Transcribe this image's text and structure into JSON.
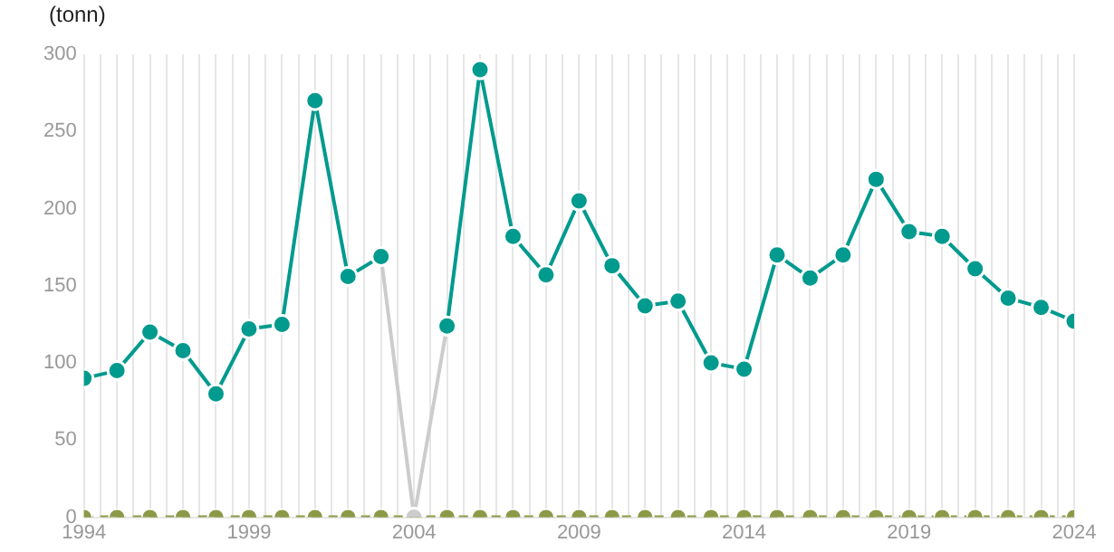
{
  "chart_data": {
    "type": "line",
    "ylabel": "(tonn)",
    "x": [
      1994,
      1995,
      1996,
      1997,
      1998,
      1999,
      2000,
      2001,
      2002,
      2003,
      2004,
      2005,
      2006,
      2007,
      2008,
      2009,
      2010,
      2011,
      2012,
      2013,
      2014,
      2015,
      2016,
      2017,
      2018,
      2019,
      2020,
      2021,
      2022,
      2023,
      2024
    ],
    "series": [
      {
        "color": "#009a8e",
        "values": [
          90,
          95,
          120,
          108,
          80,
          122,
          125,
          270,
          156,
          169,
          null,
          124,
          290,
          182,
          157,
          205,
          163,
          137,
          140,
          100,
          96,
          170,
          155,
          170,
          219,
          185,
          182,
          161,
          142,
          136,
          127
        ]
      },
      {
        "color": "#cccccc",
        "values": [
          null,
          null,
          null,
          null,
          null,
          null,
          null,
          null,
          null,
          169,
          0,
          124,
          null,
          null,
          null,
          null,
          null,
          null,
          null,
          null,
          null,
          null,
          null,
          null,
          null,
          null,
          null,
          null,
          null,
          null,
          null
        ]
      },
      {
        "color": "#8c9a48",
        "line_style": "dashed",
        "values": [
          0,
          0,
          0,
          0,
          0,
          0,
          0,
          0,
          0,
          0,
          0,
          0,
          0,
          0,
          0,
          0,
          0,
          0,
          0,
          0,
          0,
          0,
          0,
          0,
          0,
          0,
          0,
          0,
          0,
          0,
          0
        ]
      }
    ],
    "xlim": [
      1994,
      2024
    ],
    "xticks": [
      1994,
      {
        "value": 1994.5,
        "label": null
      },
      {
        "value": 1995,
        "label": null
      },
      {
        "value": 1995.5,
        "label": null
      },
      {
        "value": 1996,
        "label": null
      },
      {
        "value": 1996.5,
        "label": null
      },
      {
        "value": 1997,
        "label": null
      },
      {
        "value": 1997.5,
        "label": null
      },
      {
        "value": 1998,
        "label": null
      },
      {
        "value": 1998.5,
        "label": null
      },
      1999,
      {
        "value": 1999.5,
        "label": null
      },
      {
        "value": 2000,
        "label": null
      },
      {
        "value": 2000.5,
        "label": null
      },
      {
        "value": 2001,
        "label": null
      },
      {
        "value": 2001.5,
        "label": null
      },
      {
        "value": 2002,
        "label": null
      },
      {
        "value": 2002.5,
        "label": null
      },
      {
        "value": 2003,
        "label": null
      },
      {
        "value": 2003.5,
        "label": null
      },
      2004,
      {
        "value": 2004.5,
        "label": null
      },
      {
        "value": 2005,
        "label": null
      },
      {
        "value": 2005.5,
        "label": null
      },
      {
        "value": 2006,
        "label": null
      },
      {
        "value": 2006.5,
        "label": null
      },
      {
        "value": 2007,
        "label": null
      },
      {
        "value": 2007.5,
        "label": null
      },
      {
        "value": 2008,
        "label": null
      },
      {
        "value": 2008.5,
        "label": null
      },
      2009,
      {
        "value": 2009.5,
        "label": null
      },
      {
        "value": 2010,
        "label": null
      },
      {
        "value": 2010.5,
        "label": null
      },
      {
        "value": 2011,
        "label": null
      },
      {
        "value": 2011.5,
        "label": null
      },
      {
        "value": 2012,
        "label": null
      },
      {
        "value": 2012.5,
        "label": null
      },
      {
        "value": 2013,
        "label": null
      },
      {
        "value": 2013.5,
        "label": null
      },
      2014,
      {
        "value": 2014.5,
        "label": null
      },
      {
        "value": 2015,
        "label": null
      },
      {
        "value": 2015.5,
        "label": null
      },
      {
        "value": 2016,
        "label": null
      },
      {
        "value": 2016.5,
        "label": null
      },
      {
        "value": 2017,
        "label": null
      },
      {
        "value": 2017.5,
        "label": null
      },
      {
        "value": 2018,
        "label": null
      },
      {
        "value": 2018.5,
        "label": null
      },
      2019,
      {
        "value": 2019.5,
        "label": null
      },
      {
        "value": 2020,
        "label": null
      },
      {
        "value": 2020.5,
        "label": null
      },
      {
        "value": 2021,
        "label": null
      },
      {
        "value": 2021.5,
        "label": null
      },
      {
        "value": 2022,
        "label": null
      },
      {
        "value": 2022.5,
        "label": null
      },
      {
        "value": 2023,
        "label": null
      },
      {
        "value": 2023.5,
        "label": null
      },
      2024
    ],
    "ylim": [
      0,
      300
    ],
    "yticks": [
      0,
      50,
      100,
      150,
      200,
      250,
      300
    ],
    "grid": "x",
    "legend": false,
    "marker": "circle"
  }
}
